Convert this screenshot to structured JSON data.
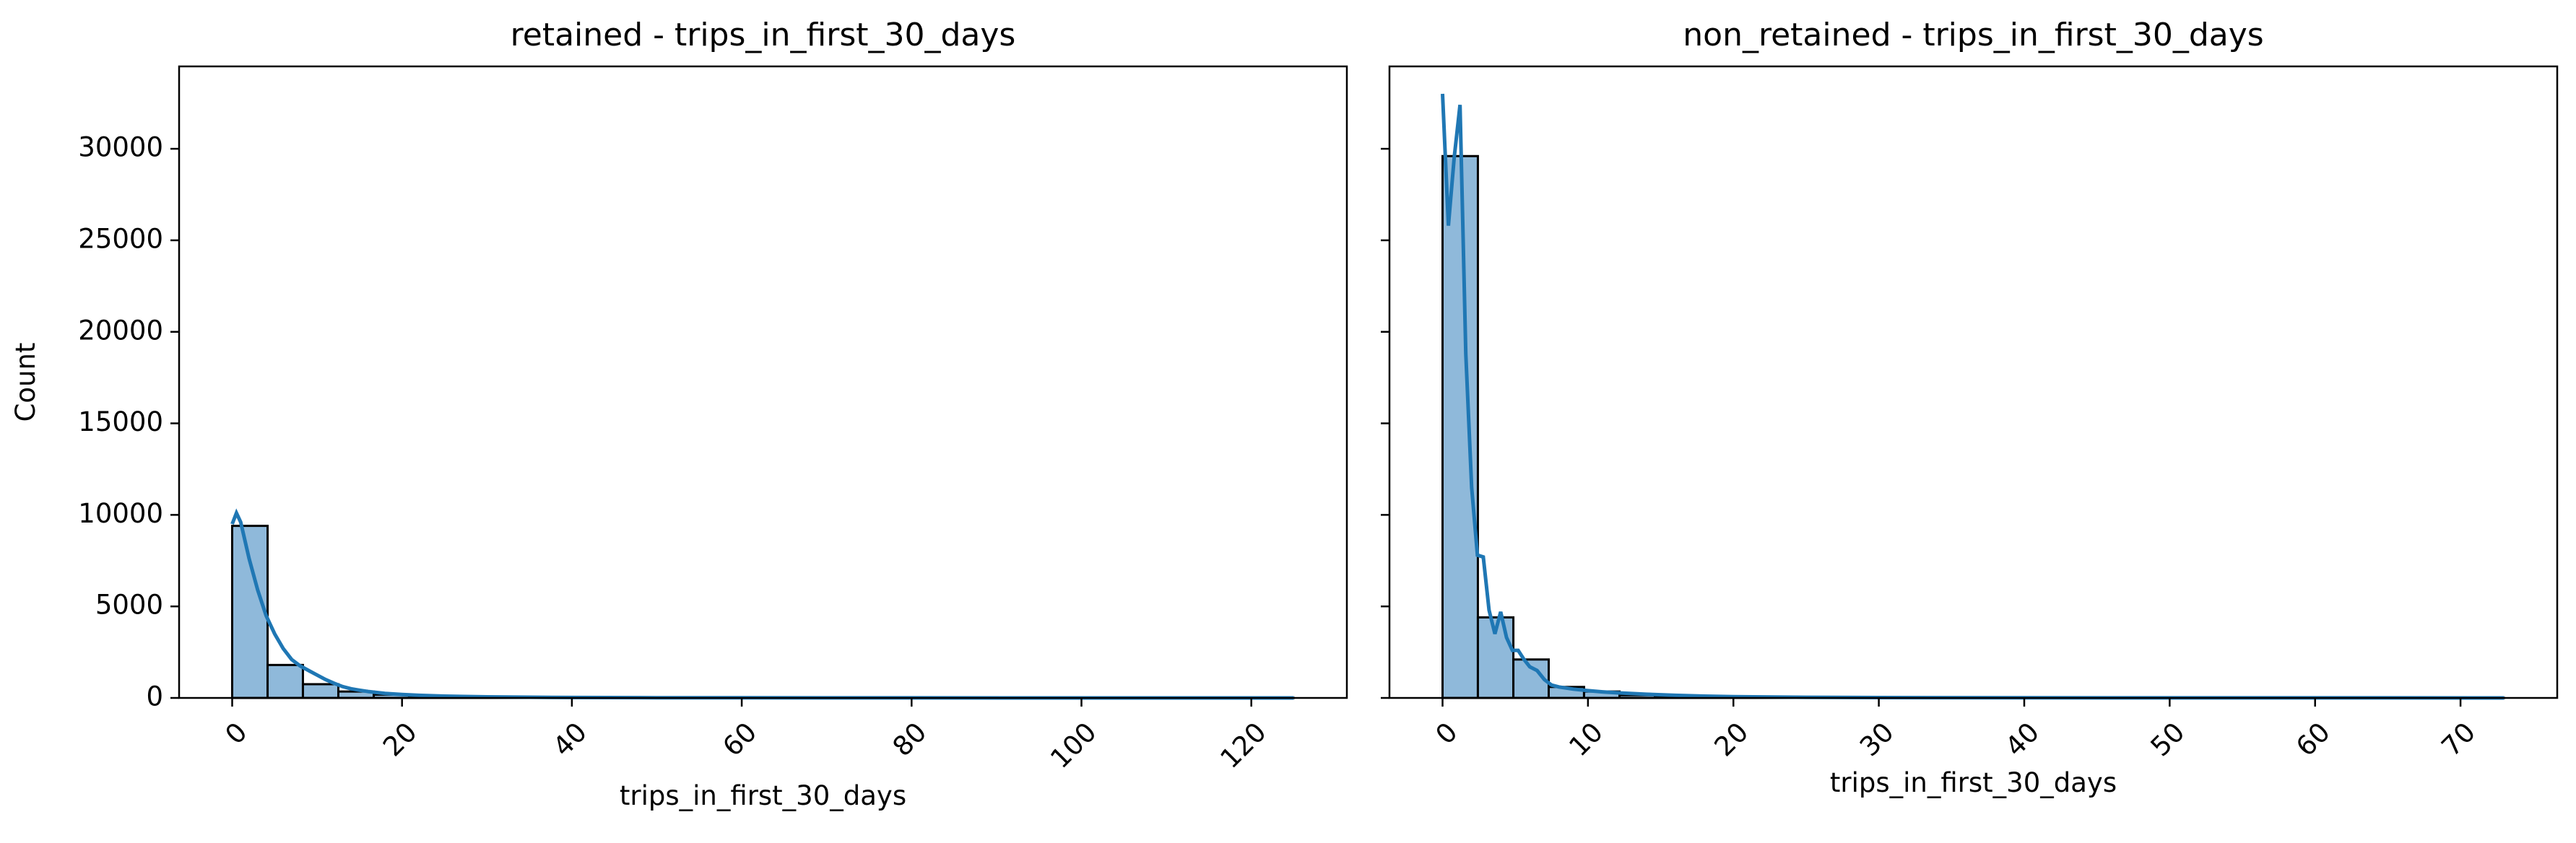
{
  "figure": {
    "shared_ylabel": "Count"
  },
  "chart_data": [
    {
      "type": "histogram",
      "title": "retained - trips_in_first_30_days",
      "xlabel": "trips_in_first_30_days",
      "ylabel": "Count",
      "xlim": [
        -6.25,
        131.25
      ],
      "ylim": [
        0,
        34500
      ],
      "xticks": [
        0,
        20,
        40,
        60,
        80,
        100,
        120
      ],
      "yticks": [
        0,
        5000,
        10000,
        15000,
        20000,
        25000,
        30000
      ],
      "bin_edges": [
        0,
        4.17,
        8.33,
        12.5,
        16.67,
        20.83,
        25,
        29.17,
        33.33,
        37.5,
        41.67,
        45.83,
        50,
        54.17,
        58.33,
        62.5,
        66.67,
        70.83,
        75,
        79.17,
        83.33,
        87.5,
        91.67,
        95.83,
        100,
        104.17,
        108.33,
        112.5,
        116.67,
        120.83,
        125
      ],
      "counts": [
        9400,
        1800,
        750,
        350,
        180,
        110,
        70,
        45,
        30,
        20,
        15,
        10,
        8,
        6,
        5,
        4,
        3,
        3,
        2,
        2,
        2,
        1,
        1,
        1,
        1,
        1,
        1,
        1,
        1,
        1
      ],
      "kde": {
        "x": [
          0,
          0.5,
          1,
          2,
          3,
          4,
          5,
          6,
          7,
          8,
          9,
          10,
          11,
          12,
          13,
          14,
          15,
          16,
          18,
          20,
          22,
          25,
          30,
          35,
          40,
          50,
          60,
          80,
          100,
          125
        ],
        "y": [
          9500,
          10100,
          9600,
          7600,
          5900,
          4500,
          3500,
          2700,
          2100,
          1750,
          1500,
          1250,
          1000,
          800,
          620,
          500,
          420,
          350,
          250,
          190,
          140,
          100,
          60,
          40,
          25,
          12,
          6,
          2,
          1,
          0
        ]
      },
      "bar_color": "#8fb9da",
      "line_color": "#1f77b4"
    },
    {
      "type": "histogram",
      "title": "non_retained - trips_in_first_30_days",
      "xlabel": "trips_in_first_30_days",
      "ylabel": "",
      "xlim": [
        -3.65,
        76.65
      ],
      "ylim": [
        0,
        34500
      ],
      "xticks": [
        0,
        10,
        20,
        30,
        40,
        50,
        60,
        70
      ],
      "yticks": [
        0,
        5000,
        10000,
        15000,
        20000,
        25000,
        30000
      ],
      "bin_edges": [
        0,
        2.43,
        4.87,
        7.3,
        9.73,
        12.17,
        14.6,
        17.03,
        19.47,
        21.9,
        24.33,
        26.77,
        29.2,
        31.63,
        34.07,
        36.5,
        38.93,
        41.37,
        43.8,
        46.23,
        48.67,
        51.1,
        53.53,
        55.97,
        58.4,
        60.83,
        63.27,
        65.7,
        68.13,
        70.57,
        73
      ],
      "counts": [
        29600,
        4400,
        2100,
        600,
        350,
        150,
        90,
        60,
        40,
        25,
        20,
        15,
        10,
        8,
        6,
        5,
        4,
        3,
        3,
        2,
        2,
        2,
        1,
        1,
        1,
        1,
        1,
        1,
        1,
        1
      ],
      "kde": {
        "x": [
          0,
          0.4,
          0.8,
          1.2,
          1.6,
          2.0,
          2.4,
          2.8,
          3.2,
          3.6,
          4.0,
          4.4,
          4.8,
          5.2,
          5.6,
          6.0,
          6.5,
          7.0,
          7.5,
          8.0,
          9,
          10,
          11,
          12,
          14,
          16,
          18,
          20,
          25,
          30,
          40,
          50,
          60,
          73
        ],
        "y": [
          33000,
          25800,
          29500,
          32400,
          18800,
          11500,
          7800,
          7700,
          4800,
          3500,
          4700,
          3300,
          2600,
          2600,
          2100,
          1700,
          1500,
          1000,
          700,
          600,
          480,
          400,
          330,
          280,
          200,
          140,
          100,
          70,
          35,
          18,
          8,
          4,
          2,
          0
        ]
      },
      "bar_color": "#8fb9da",
      "line_color": "#1f77b4"
    }
  ]
}
